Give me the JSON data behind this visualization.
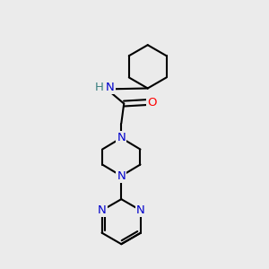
{
  "bg_color": "#ebebeb",
  "bond_color": "#000000",
  "N_color": "#0000cc",
  "O_color": "#ff0000",
  "H_color": "#3a8080",
  "line_width": 1.5,
  "font_size_atom": 9.5,
  "fig_width": 3.0,
  "fig_height": 3.0,
  "dpi": 100,
  "xlim": [
    0,
    10
  ],
  "ylim": [
    0,
    10
  ]
}
